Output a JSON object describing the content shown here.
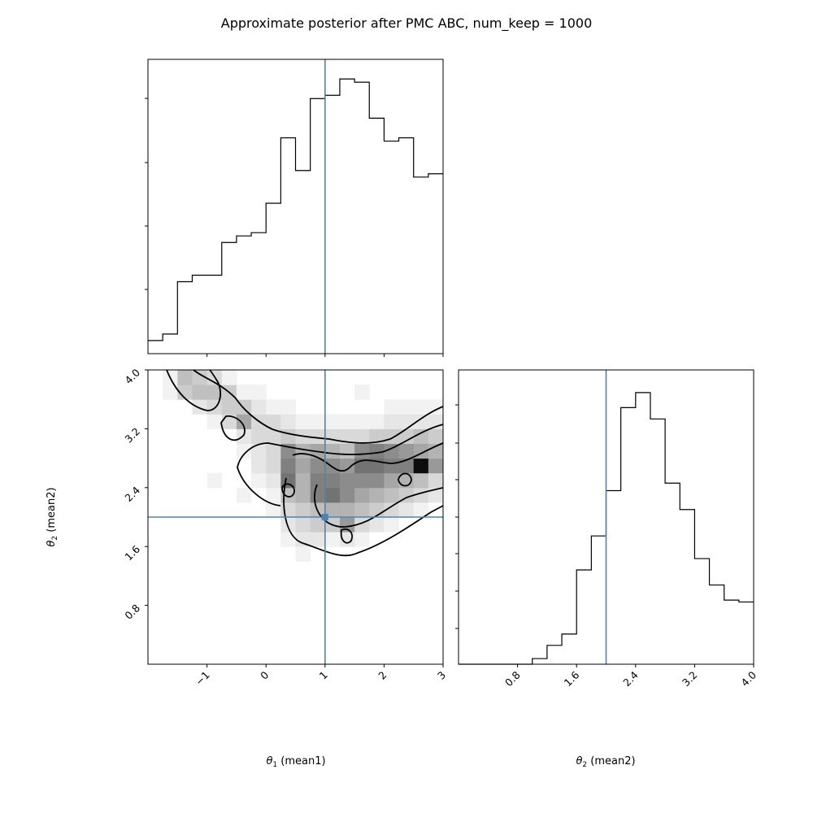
{
  "figure": {
    "title": "Approximate posterior after PMC ABC, num_keep = 1000"
  },
  "colors": {
    "truth_line": "#4c84b4",
    "hist_line": "#000000",
    "density_dark": "#000000",
    "background": "#ffffff"
  },
  "chart_data": [
    {
      "type": "histogram",
      "panel": "marginal theta1",
      "xlabel": "",
      "ylabel": "",
      "xlim": [
        -2.0,
        3.0
      ],
      "bin_width": 0.25,
      "bin_edges": [
        -2.0,
        -1.75,
        -1.5,
        -1.25,
        -1.0,
        -0.75,
        -0.5,
        -0.25,
        0.0,
        0.25,
        0.5,
        0.75,
        1.0,
        1.25,
        1.5,
        1.75,
        2.0,
        2.25,
        2.5,
        2.75,
        3.0
      ],
      "values": [
        2,
        3,
        11,
        12,
        12,
        17,
        18,
        18.5,
        23,
        33,
        28,
        39,
        39.5,
        42,
        41.5,
        36,
        32.5,
        33,
        27,
        27.5
      ],
      "y_ticks_shown_without_labels": true,
      "truth": 1.0
    },
    {
      "type": "heatmap",
      "panel": "joint theta1 vs theta2",
      "xlabel": "θ1 (mean1)",
      "ylabel": "θ2 (mean2)",
      "xlim": [
        -2.0,
        3.0
      ],
      "ylim": [
        0.0,
        4.0
      ],
      "x_ticks": [
        "−1",
        "0",
        "1",
        "2",
        "3"
      ],
      "y_ticks": [
        "0.8",
        "1.6",
        "2.4",
        "3.2",
        "4.0"
      ],
      "x_bin_edges": [
        -2.0,
        -1.75,
        -1.5,
        -1.25,
        -1.0,
        -0.75,
        -0.5,
        -0.25,
        0.0,
        0.25,
        0.5,
        0.75,
        1.0,
        1.25,
        1.5,
        1.75,
        2.0,
        2.25,
        2.5,
        2.75,
        3.0
      ],
      "y_bin_edges": [
        0.0,
        0.2,
        0.4,
        0.6,
        0.8,
        1.0,
        1.2,
        1.4,
        1.6,
        1.8,
        2.0,
        2.2,
        2.4,
        2.6,
        2.8,
        3.0,
        3.2,
        3.4,
        3.6,
        3.8,
        4.0
      ],
      "density_levels": [
        [
          0,
          0,
          0,
          0,
          0,
          0,
          0,
          0,
          0,
          0,
          0,
          0,
          0,
          0,
          0,
          0,
          0,
          0,
          0,
          0
        ],
        [
          0,
          0,
          0,
          0,
          0,
          0,
          0,
          0,
          0,
          0,
          0,
          0,
          0,
          0,
          0,
          0,
          0,
          0,
          0,
          0
        ],
        [
          0,
          0,
          0,
          0,
          0,
          0,
          0,
          0,
          0,
          0,
          0,
          0,
          0,
          0,
          0,
          0,
          0,
          0,
          0,
          0
        ],
        [
          0,
          0,
          0,
          0,
          0,
          0,
          0,
          0,
          0,
          0,
          0,
          0,
          0,
          0,
          0,
          0,
          0,
          0,
          0,
          0
        ],
        [
          0,
          0,
          0,
          0,
          0,
          0,
          0,
          0,
          0,
          0,
          0,
          0,
          0,
          0,
          0,
          0,
          0,
          0,
          0,
          0
        ],
        [
          0,
          0,
          0,
          0,
          0,
          0,
          0,
          0,
          0,
          0,
          0,
          0,
          0,
          0,
          0,
          0,
          0,
          0,
          0,
          0
        ],
        [
          0,
          0,
          0,
          0,
          0,
          0,
          0,
          0,
          0,
          0,
          0,
          0,
          0,
          0,
          0,
          0,
          0,
          0,
          0,
          0
        ],
        [
          0,
          0,
          0,
          0,
          0,
          0,
          0,
          0,
          0,
          0,
          0.05,
          0,
          0,
          0,
          0,
          0,
          0,
          0,
          0,
          0
        ],
        [
          0,
          0,
          0,
          0,
          0,
          0,
          0,
          0,
          0,
          0.05,
          0.1,
          0.1,
          0.05,
          0.1,
          0.05,
          0,
          0,
          0,
          0,
          0
        ],
        [
          0,
          0,
          0,
          0,
          0,
          0,
          0,
          0,
          0,
          0.1,
          0.15,
          0.2,
          0.2,
          0.4,
          0.15,
          0.1,
          0.05,
          0,
          0,
          0
        ],
        [
          0,
          0,
          0,
          0,
          0,
          0,
          0,
          0,
          0.05,
          0.15,
          0.2,
          0.25,
          0.3,
          0.3,
          0.25,
          0.2,
          0.15,
          0.1,
          0.05,
          0
        ],
        [
          0,
          0,
          0,
          0,
          0,
          0,
          0.05,
          0,
          0.05,
          0.25,
          0.3,
          0.5,
          0.55,
          0.45,
          0.35,
          0.3,
          0.25,
          0.2,
          0.15,
          0.1
        ],
        [
          0,
          0,
          0,
          0,
          0.05,
          0,
          0,
          0.05,
          0.1,
          0.55,
          0.3,
          0.5,
          0.5,
          0.45,
          0.45,
          0.45,
          0.35,
          0.3,
          0.25,
          0.15
        ],
        [
          0,
          0,
          0,
          0,
          0,
          0,
          0,
          0.1,
          0.15,
          0.5,
          0.35,
          0.45,
          0.45,
          0.4,
          0.55,
          0.55,
          0.5,
          0.5,
          0.95,
          0.4
        ],
        [
          0,
          0,
          0,
          0,
          0,
          0,
          0.05,
          0.1,
          0.15,
          0.45,
          0.3,
          0.35,
          0.3,
          0.25,
          0.45,
          0.5,
          0.45,
          0.4,
          0.35,
          0.3
        ],
        [
          0,
          0,
          0,
          0,
          0,
          0,
          0.1,
          0.15,
          0.15,
          0.2,
          0.15,
          0.15,
          0.15,
          0.15,
          0.15,
          0.2,
          0.2,
          0.2,
          0.25,
          0.2
        ],
        [
          0,
          0,
          0,
          0,
          0.05,
          0.15,
          0.35,
          0.15,
          0.15,
          0.1,
          0.05,
          0.05,
          0.05,
          0.05,
          0.05,
          0.05,
          0.1,
          0.1,
          0.1,
          0.1
        ],
        [
          0,
          0,
          0,
          0.1,
          0.15,
          0.2,
          0.2,
          0.1,
          0.05,
          0.05,
          0,
          0,
          0,
          0,
          0,
          0,
          0.05,
          0.05,
          0.05,
          0.05
        ],
        [
          0,
          0.05,
          0.2,
          0.25,
          0.25,
          0.2,
          0.05,
          0.05,
          0,
          0,
          0,
          0,
          0,
          0,
          0.05,
          0,
          0,
          0,
          0,
          0
        ],
        [
          0,
          0.05,
          0.25,
          0.2,
          0.15,
          0.05,
          0,
          0,
          0,
          0,
          0,
          0,
          0,
          0,
          0,
          0,
          0,
          0,
          0,
          0
        ]
      ],
      "truth": [
        1.0,
        2.0
      ]
    },
    {
      "type": "histogram",
      "panel": "marginal theta2",
      "xlabel": "θ2 (mean2)",
      "ylabel": "",
      "xlim": [
        0.0,
        4.0
      ],
      "x_ticks": [
        "0.8",
        "1.6",
        "2.4",
        "3.2",
        "4.0"
      ],
      "bin_width": 0.2,
      "bin_edges": [
        0.0,
        0.2,
        0.4,
        0.6,
        0.8,
        1.0,
        1.2,
        1.4,
        1.6,
        1.8,
        2.0,
        2.2,
        2.4,
        2.6,
        2.8,
        3.0,
        3.2,
        3.4,
        3.6,
        3.8,
        4.0
      ],
      "values": [
        0,
        0,
        0,
        0,
        0,
        1.5,
        5,
        8,
        25,
        34,
        46,
        68,
        72,
        65,
        48,
        41,
        28,
        21,
        17,
        16.5
      ],
      "y_ticks_shown_without_labels": true,
      "truth": 2.0
    }
  ]
}
